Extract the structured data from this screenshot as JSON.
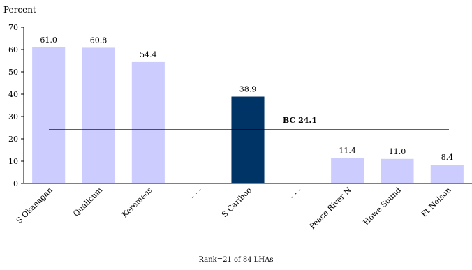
{
  "chart_data": {
    "type": "bar",
    "ylabel": "Percent",
    "ylim": [
      0,
      70
    ],
    "yticks": [
      0,
      10,
      20,
      30,
      40,
      50,
      60,
      70
    ],
    "categories": [
      "S Okanagan",
      "Qualicum",
      "Keremeos",
      "- - -",
      "S Cariboo",
      "- - -",
      "Peace River N",
      "Howe Sound",
      "Ft Nelson"
    ],
    "values": [
      61.0,
      60.8,
      54.4,
      null,
      38.9,
      null,
      11.4,
      11.0,
      8.4
    ],
    "value_labels": [
      "61.0",
      "60.8",
      "54.4",
      "",
      "38.9",
      "",
      "11.4",
      "11.0",
      "8.4"
    ],
    "highlight_category": "S Cariboo",
    "reference_line": {
      "label": "BC 24.1",
      "value": 24.1
    },
    "footnote": "Rank=21 of 84 LHAs",
    "colors": {
      "bar": "#ccccff",
      "highlight": "#003366",
      "reference": "#000000"
    },
    "grid": false
  }
}
